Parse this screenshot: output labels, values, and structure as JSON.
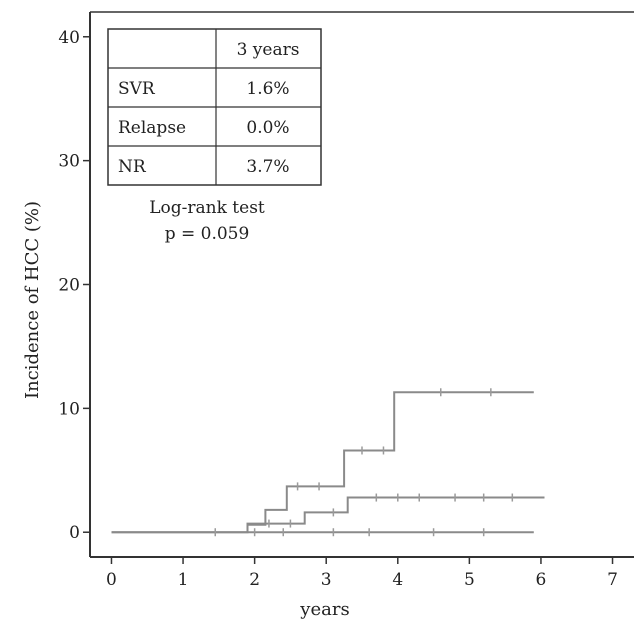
{
  "chart_data": {
    "type": "line",
    "subtype": "kaplan-meier step curves",
    "xlabel": "years",
    "ylabel": "Incidence of HCC (%)",
    "xlim": [
      -0.3,
      7.3
    ],
    "ylim": [
      -2,
      42
    ],
    "x_ticks": [
      0,
      1,
      2,
      3,
      4,
      5,
      6,
      7
    ],
    "y_ticks": [
      0,
      10,
      20,
      30,
      40
    ],
    "grid": false,
    "colors": {
      "axis": "#333333",
      "curve": "#8a8a8a",
      "censor": "#9a9a9a"
    },
    "series": [
      {
        "steps": [
          [
            0,
            0
          ],
          [
            5.9,
            0
          ]
        ],
        "censor_x": [
          1.45,
          2.0,
          2.4,
          3.1,
          3.6,
          4.5,
          5.2
        ]
      },
      {
        "steps": [
          [
            0,
            0
          ],
          [
            1.9,
            0
          ],
          [
            1.9,
            0.7
          ],
          [
            2.7,
            0.7
          ],
          [
            2.7,
            1.6
          ],
          [
            3.3,
            1.6
          ],
          [
            3.3,
            2.8
          ],
          [
            6.05,
            2.8
          ]
        ],
        "censor_x": [
          2.2,
          2.5,
          3.1,
          3.7,
          4.0,
          4.3,
          4.8,
          5.2,
          5.6
        ]
      },
      {
        "steps": [
          [
            1.9,
            0.6
          ],
          [
            2.15,
            0.6
          ],
          [
            2.15,
            1.8
          ],
          [
            2.45,
            1.8
          ],
          [
            2.45,
            3.7
          ],
          [
            3.25,
            3.7
          ],
          [
            3.25,
            6.6
          ],
          [
            3.95,
            6.6
          ],
          [
            3.95,
            11.3
          ],
          [
            5.9,
            11.3
          ]
        ],
        "censor_x": [
          2.6,
          2.9,
          3.5,
          3.8,
          4.6,
          5.3
        ]
      }
    ],
    "table": {
      "header": [
        "",
        "3 years"
      ],
      "rows": [
        [
          "SVR",
          "1.6%"
        ],
        [
          "Relapse",
          "0.0%"
        ],
        [
          "NR",
          "3.7%"
        ]
      ]
    },
    "annotation": {
      "test_label": "Log-rank test",
      "p_value": "p = 0.059"
    }
  }
}
